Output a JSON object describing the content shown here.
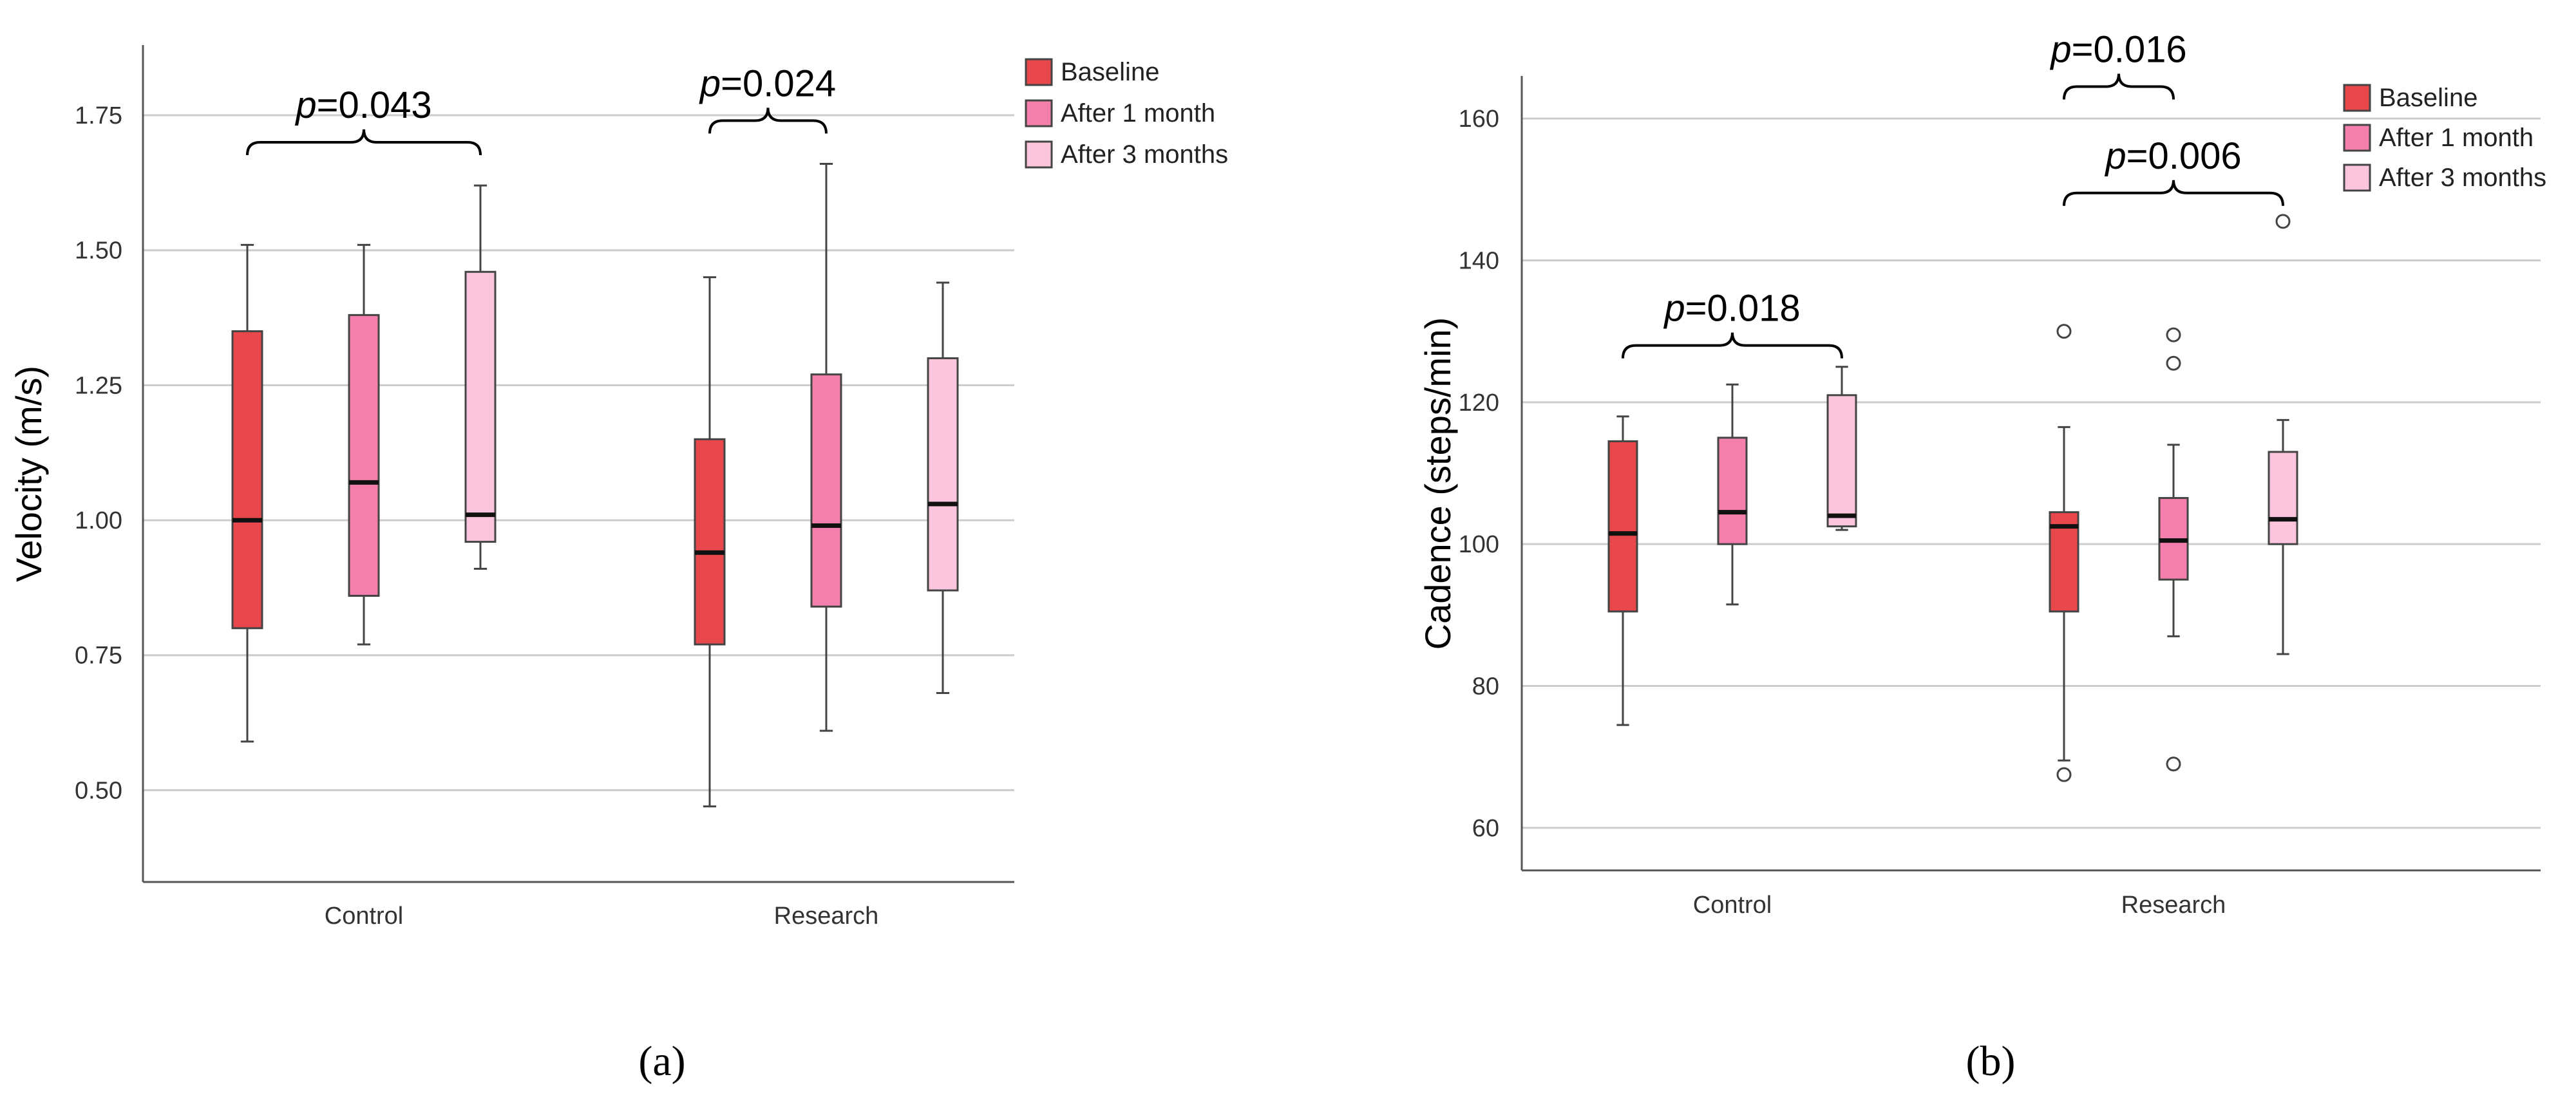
{
  "chart_data": [
    {
      "type": "boxplot",
      "panel_label": "(a)",
      "ylabel": "Velocity (m/s)",
      "ylim": [
        0.33,
        1.88
      ],
      "yticks": [
        0.5,
        0.75,
        1.0,
        1.25,
        1.5,
        1.75
      ],
      "ytick_labels": [
        "0.50",
        "0.75",
        "1.00",
        "1.25",
        "1.50",
        "1.75"
      ],
      "grid": true,
      "legend_position": "top-right",
      "categories": [
        "Control",
        "Research"
      ],
      "series": [
        {
          "name": "Baseline",
          "color": "#e8474c",
          "boxes": [
            {
              "whislo": 0.59,
              "q1": 0.8,
              "med": 1.0,
              "q3": 1.35,
              "whishi": 1.51
            },
            {
              "whislo": 0.47,
              "q1": 0.77,
              "med": 0.94,
              "q3": 1.15,
              "whishi": 1.45
            }
          ]
        },
        {
          "name": "After 1 month",
          "color": "#f47fac",
          "boxes": [
            {
              "whislo": 0.77,
              "q1": 0.86,
              "med": 1.07,
              "q3": 1.38,
              "whishi": 1.51
            },
            {
              "whislo": 0.61,
              "q1": 0.84,
              "med": 0.99,
              "q3": 1.27,
              "whishi": 1.66
            }
          ]
        },
        {
          "name": "After 3 months",
          "color": "#fbc6dd",
          "boxes": [
            {
              "whislo": 0.91,
              "q1": 0.96,
              "med": 1.01,
              "q3": 1.46,
              "whishi": 1.62
            },
            {
              "whislo": 0.68,
              "q1": 0.87,
              "med": 1.03,
              "q3": 1.3,
              "whishi": 1.44
            }
          ]
        }
      ],
      "annotations": [
        {
          "category": 0,
          "from": 0,
          "to": 2,
          "level": 1.7,
          "prefix": "p",
          "value": "=0.043"
        },
        {
          "category": 1,
          "from": 0,
          "to": 1,
          "level": 1.74,
          "prefix": "p",
          "value": "=0.024"
        }
      ]
    },
    {
      "type": "boxplot",
      "panel_label": "(b)",
      "ylabel": "Cadence (steps/min)",
      "ylim": [
        54,
        166
      ],
      "yticks": [
        60,
        80,
        100,
        120,
        140,
        160
      ],
      "ytick_labels": [
        "60",
        "80",
        "100",
        "120",
        "140",
        "160"
      ],
      "grid": true,
      "legend_position": "top-right",
      "categories": [
        "Control",
        "Research"
      ],
      "series": [
        {
          "name": "Baseline",
          "color": "#e8474c",
          "boxes": [
            {
              "whislo": 74.5,
              "q1": 90.5,
              "med": 101.5,
              "q3": 114.5,
              "whishi": 118.0,
              "fliers": []
            },
            {
              "whislo": 69.5,
              "q1": 90.5,
              "med": 102.5,
              "q3": 104.5,
              "whishi": 116.5,
              "fliers": [
                130,
                67.5
              ]
            }
          ]
        },
        {
          "name": "After 1 month",
          "color": "#f47fac",
          "boxes": [
            {
              "whislo": 91.5,
              "q1": 100.0,
              "med": 104.5,
              "q3": 115.0,
              "whishi": 122.5,
              "fliers": []
            },
            {
              "whislo": 87.0,
              "q1": 95.0,
              "med": 100.5,
              "q3": 106.5,
              "whishi": 114.0,
              "fliers": [
                129.5,
                125.5,
                69.0
              ]
            }
          ]
        },
        {
          "name": "After 3 months",
          "color": "#fbc6dd",
          "boxes": [
            {
              "whislo": 102.0,
              "q1": 102.5,
              "med": 104.0,
              "q3": 121.0,
              "whishi": 125.0,
              "fliers": []
            },
            {
              "whislo": 84.5,
              "q1": 100.0,
              "med": 103.5,
              "q3": 113.0,
              "whishi": 117.5,
              "fliers": [
                145.5
              ]
            }
          ]
        }
      ],
      "annotations": [
        {
          "category": 0,
          "from": 0,
          "to": 2,
          "level": 128.0,
          "prefix": "p",
          "value": "=0.018"
        },
        {
          "category": 1,
          "from": 0,
          "to": 2,
          "level": 149.5,
          "prefix": "p",
          "value": "=0.006"
        },
        {
          "category": 1,
          "from": 0,
          "to": 1,
          "level": 164.5,
          "prefix": "p",
          "value": "=0.016"
        }
      ]
    }
  ]
}
